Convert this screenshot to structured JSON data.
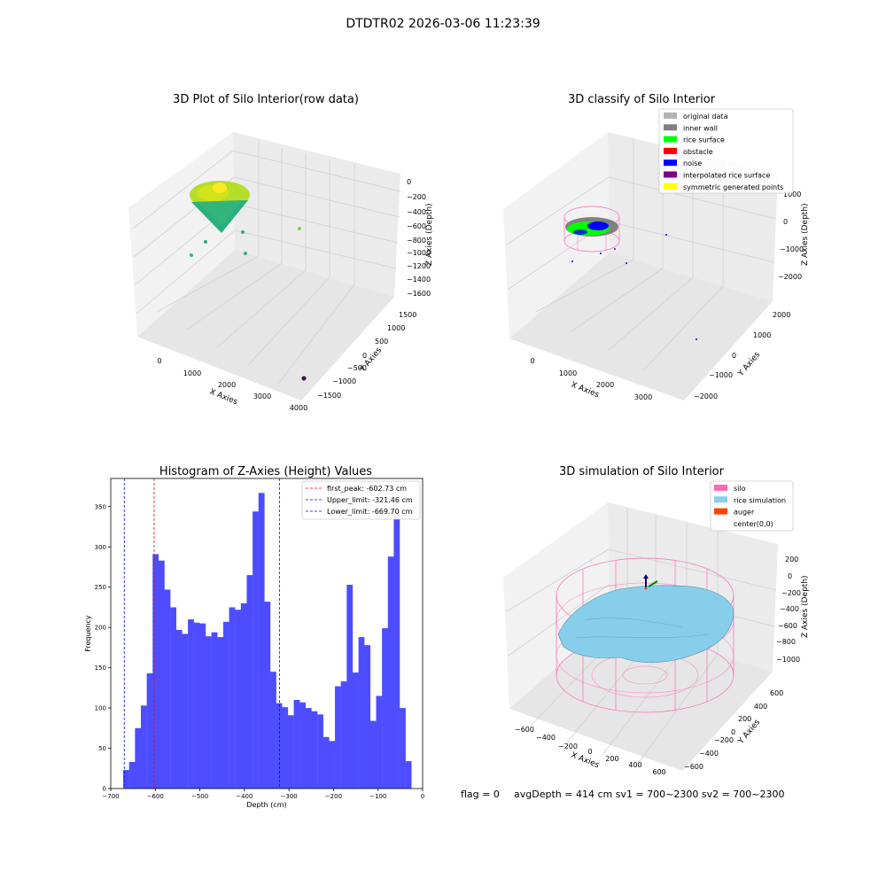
{
  "suptitle": "DTDTR02 2026-03-06 11:23:39",
  "footer": {
    "flag": "flag = 0",
    "stats": "avgDepth = 414 cm  sv1 = 700~2300  sv2 = 700~2300"
  },
  "plot1": {
    "title": "3D Plot of Silo Interior(row data)",
    "xlabel": "X Axies",
    "ylabel": "Y Axies",
    "zlabel": "Z Axies (Depth)",
    "xticks": [
      "0",
      "1000",
      "2000",
      "3000",
      "4000"
    ],
    "yticks": [
      "1500",
      "1000",
      "500",
      "0",
      "−500",
      "−1000",
      "−1500"
    ],
    "zticks": [
      "0",
      "−200",
      "−400",
      "−600",
      "−800",
      "−1000",
      "−1200",
      "−1400",
      "−1600"
    ]
  },
  "plot2": {
    "title": "3D classify of Silo Interior",
    "xlabel": "X Axies",
    "ylabel": "Y Axies",
    "zlabel": "Z Axies (Depth)",
    "xticks": [
      "0",
      "1000",
      "2000",
      "3000"
    ],
    "yticks": [
      "2000",
      "1000",
      "0",
      "−1000",
      "−2000"
    ],
    "zticks": [
      "1000",
      "0",
      "−1000",
      "−2000"
    ],
    "legend": [
      {
        "label": "original data",
        "color": "#b3b3b3"
      },
      {
        "label": "inner wall",
        "color": "#808080"
      },
      {
        "label": "rice surface",
        "color": "#00ff00"
      },
      {
        "label": "obstacle",
        "color": "#ff0000"
      },
      {
        "label": "noise",
        "color": "#0000ff"
      },
      {
        "label": "interpolated rice surface",
        "color": "#800080"
      },
      {
        "label": "symmetric generated points",
        "color": "#ffff00"
      }
    ]
  },
  "plot4": {
    "title": "3D simulation of Silo Interior",
    "xlabel": "X Axies",
    "ylabel": "Y Axies",
    "zlabel": "Z Axies (Depth)",
    "xticks": [
      "−600",
      "−400",
      "−200",
      "0",
      "200",
      "400",
      "600"
    ],
    "yticks": [
      "600",
      "400",
      "200",
      "0",
      "−200",
      "−400",
      "−600"
    ],
    "zticks": [
      "200",
      "0",
      "−200",
      "−400",
      "−600",
      "−800",
      "−1000"
    ],
    "legend": [
      {
        "label": "silo",
        "color": "#ff69b4"
      },
      {
        "label": "rice simulation",
        "color": "#87ceeb"
      },
      {
        "label": "auger",
        "color": "#ff4500"
      },
      {
        "label": "center(0,0)",
        "color": ""
      }
    ]
  },
  "chart_data": {
    "type": "bar",
    "title": "Histogram of Z-Axies (Height) Values",
    "xlabel": "Depth (cm)",
    "ylabel": "Frequency",
    "xlim": [
      -700,
      0
    ],
    "ylim": [
      0,
      385
    ],
    "xticks": [
      -700,
      -600,
      -500,
      -400,
      -300,
      -200,
      -100,
      0
    ],
    "yticks": [
      0,
      50,
      100,
      150,
      200,
      250,
      300,
      350
    ],
    "bar_color": "#4d4dff",
    "bin_start": -672,
    "bin_width": 13.2,
    "values": [
      23,
      33,
      75,
      103,
      143,
      291,
      283,
      247,
      225,
      197,
      192,
      210,
      206,
      205,
      189,
      194,
      188,
      207,
      225,
      222,
      230,
      265,
      344,
      367,
      232,
      145,
      106,
      101,
      91,
      110,
      107,
      100,
      96,
      92,
      64,
      59,
      127,
      133,
      253,
      144,
      188,
      178,
      84,
      115,
      199,
      288,
      340,
      100,
      34
    ],
    "vlines": [
      {
        "label": "first_peak: -602.73 cm",
        "x": -602.73,
        "color": "#ff0000"
      },
      {
        "label": "Upper_limit: -321.46 cm",
        "x": -321.46,
        "color": "#0000ff"
      },
      {
        "label": "Lower_limit: -669.70 cm",
        "x": -669.7,
        "color": "#0000ff"
      }
    ],
    "legend_position": "upper right"
  }
}
